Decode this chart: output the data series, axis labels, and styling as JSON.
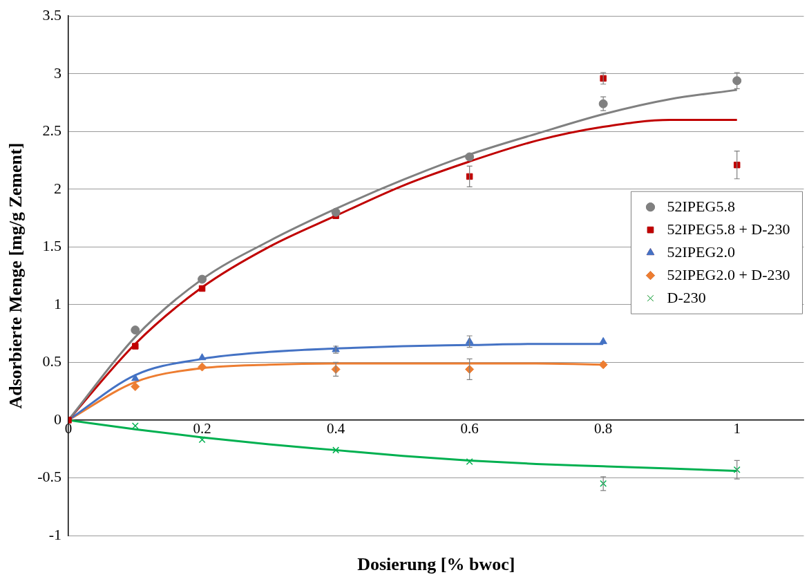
{
  "chart_data": {
    "type": "scatter",
    "xlabel": "Dosierung [% bwoc]",
    "ylabel": "Adsorbierte Menge [mg/g Zement]",
    "x": [
      0,
      0.1,
      0.2,
      0.4,
      0.6,
      0.8,
      1
    ],
    "xlim": [
      0,
      1.1
    ],
    "xticks": [
      0,
      0.2,
      0.4,
      0.6,
      0.8,
      1
    ],
    "ylim": [
      -1,
      3.5
    ],
    "yticks": [
      -1,
      -0.5,
      0,
      0.5,
      1,
      1.5,
      2,
      2.5,
      3,
      3.5
    ],
    "grid": "y",
    "legend": "right",
    "series": [
      {
        "name": "52IPEG5.8",
        "color": "#808080",
        "marker": "circle",
        "x": [
          0.1,
          0.2,
          0.4,
          0.6,
          0.8,
          1
        ],
        "values": [
          0.78,
          1.22,
          1.8,
          2.28,
          2.74,
          2.94
        ],
        "errors": [
          null,
          null,
          null,
          null,
          0.06,
          0.07
        ]
      },
      {
        "name": "52IPEG5.8 + D-230",
        "color": "#c00000",
        "marker": "square",
        "values": [
          0,
          0.64,
          1.14,
          1.77,
          2.11,
          2.96,
          2.21
        ],
        "errors": [
          null,
          null,
          null,
          null,
          0.09,
          0.05,
          0.12
        ]
      },
      {
        "name": "52IPEG2.0",
        "color": "#4472c4",
        "marker": "triangle",
        "x": [
          0.1,
          0.2,
          0.4,
          0.6,
          0.8
        ],
        "values": [
          0.36,
          0.54,
          0.61,
          0.68,
          0.68
        ],
        "errors": [
          null,
          null,
          0.03,
          0.05,
          null
        ]
      },
      {
        "name": "52IPEG2.0 + D-230",
        "color": "#ed7d31",
        "marker": "diamond",
        "x": [
          0.1,
          0.2,
          0.4,
          0.6,
          0.8
        ],
        "values": [
          0.29,
          0.46,
          0.44,
          0.44,
          0.48
        ],
        "errors": [
          null,
          null,
          0.06,
          0.09,
          null
        ]
      },
      {
        "name": "D-230",
        "color": "#00b050",
        "marker": "cross",
        "x": [
          0.1,
          0.2,
          0.4,
          0.6,
          0.8,
          1
        ],
        "values": [
          -0.05,
          -0.17,
          -0.26,
          -0.36,
          -0.55,
          -0.43
        ],
        "errors": [
          null,
          null,
          null,
          null,
          0.06,
          0.08
        ]
      },
      {
        "type": "line",
        "color": "#808080",
        "marker": "none",
        "x": [
          0,
          0.1,
          0.2,
          0.3,
          0.4,
          0.5,
          0.6,
          0.7,
          0.8,
          0.9,
          1
        ],
        "values": [
          0,
          0.72,
          1.22,
          1.55,
          1.83,
          2.08,
          2.3,
          2.48,
          2.65,
          2.78,
          2.86
        ]
      },
      {
        "type": "line",
        "color": "#c00000",
        "marker": "none",
        "x": [
          0,
          0.1,
          0.2,
          0.3,
          0.4,
          0.5,
          0.6,
          0.7,
          0.8,
          0.9,
          1
        ],
        "values": [
          0,
          0.66,
          1.15,
          1.5,
          1.77,
          2.03,
          2.24,
          2.42,
          2.54,
          2.6,
          2.6
        ]
      },
      {
        "type": "line",
        "color": "#4472c4",
        "marker": "none",
        "x": [
          0,
          0.1,
          0.2,
          0.3,
          0.4,
          0.5,
          0.6,
          0.7,
          0.8
        ],
        "values": [
          0,
          0.39,
          0.53,
          0.59,
          0.62,
          0.64,
          0.65,
          0.66,
          0.66
        ]
      },
      {
        "type": "line",
        "color": "#ed7d31",
        "marker": "none",
        "x": [
          0,
          0.1,
          0.2,
          0.3,
          0.4,
          0.5,
          0.6,
          0.7,
          0.8
        ],
        "values": [
          0,
          0.33,
          0.45,
          0.48,
          0.49,
          0.49,
          0.49,
          0.49,
          0.48
        ]
      },
      {
        "type": "line",
        "color": "#00b050",
        "marker": "none",
        "x": [
          0,
          0.1,
          0.2,
          0.3,
          0.4,
          0.5,
          0.6,
          0.7,
          0.8,
          0.9,
          1
        ],
        "values": [
          0,
          -0.08,
          -0.15,
          -0.21,
          -0.26,
          -0.31,
          -0.35,
          -0.38,
          -0.4,
          -0.42,
          -0.44
        ]
      }
    ]
  }
}
